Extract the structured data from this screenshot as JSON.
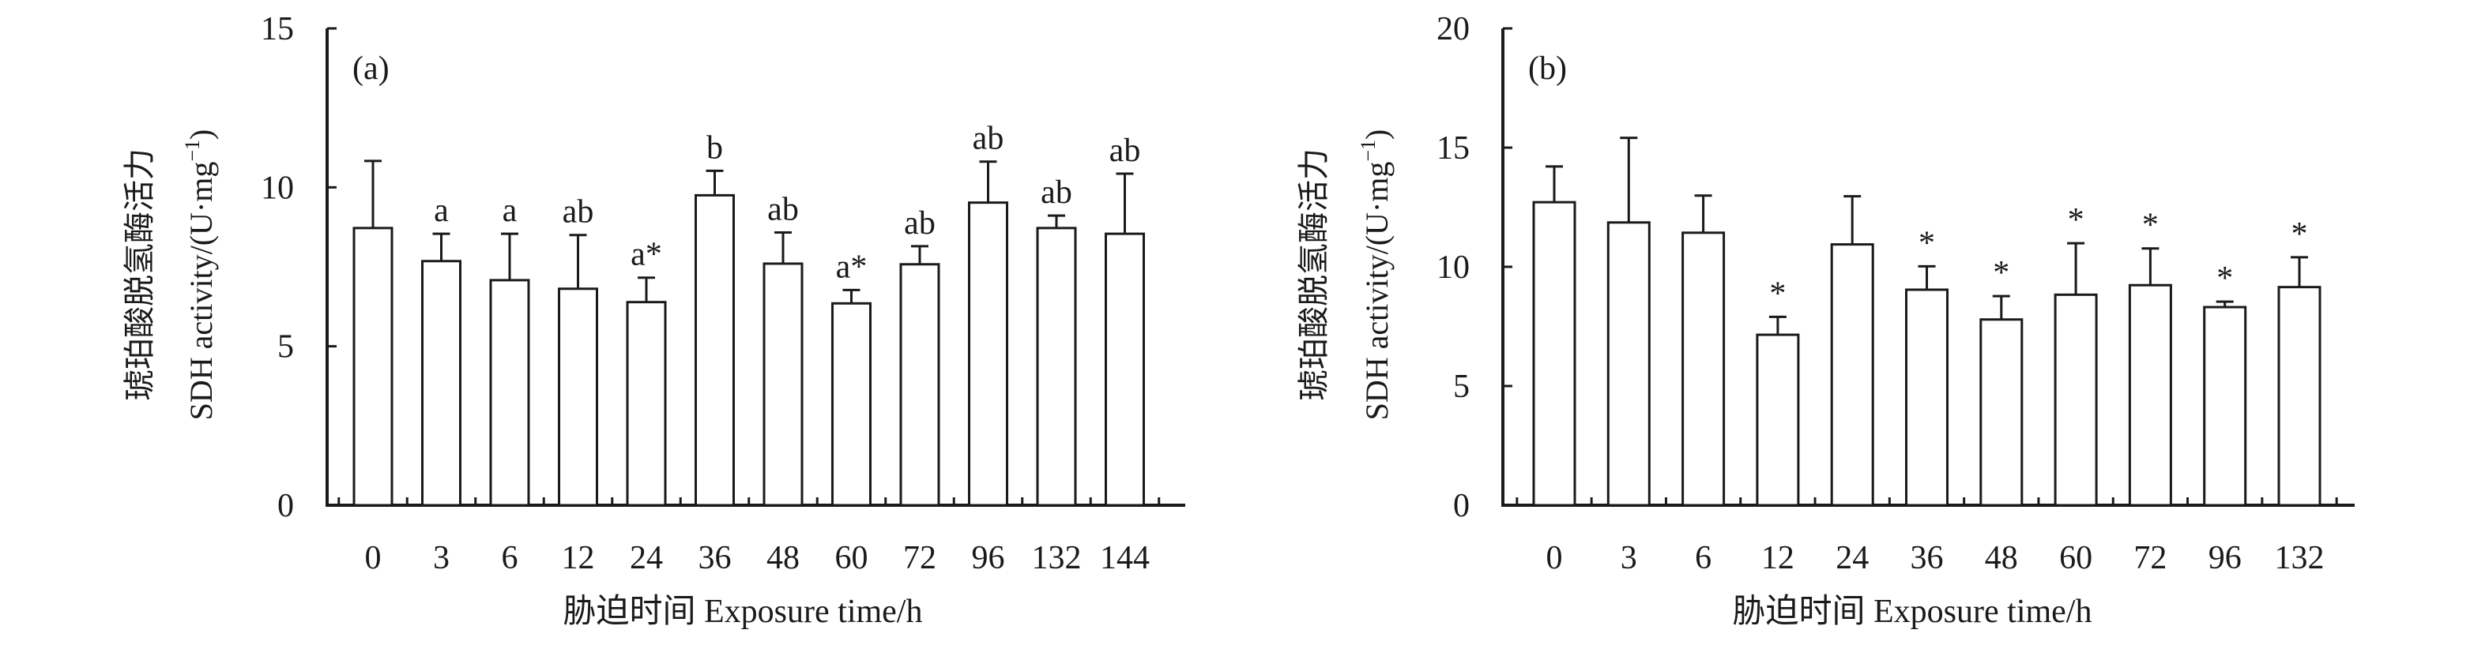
{
  "chart_data": [
    {
      "type": "bar",
      "panel_label": "(a)",
      "categories": [
        "0",
        "3",
        "6",
        "12",
        "24",
        "36",
        "48",
        "60",
        "72",
        "96",
        "132",
        "144"
      ],
      "values": [
        8.72,
        7.68,
        7.08,
        6.81,
        6.39,
        9.75,
        7.6,
        6.35,
        7.58,
        9.52,
        8.72,
        8.54
      ],
      "error_upper": [
        10.83,
        8.54,
        8.54,
        8.5,
        7.16,
        10.52,
        8.58,
        6.77,
        8.15,
        10.81,
        9.11,
        10.43
      ],
      "annotations": [
        "",
        "a",
        "a",
        "ab",
        "a*",
        "b",
        "ab",
        "a*",
        "ab",
        "ab",
        "ab",
        "ab"
      ],
      "ylabel_cn": "琥珀酸脱氢酶活力",
      "ylabel_en": "SDH activity/(U·mg",
      "ylabel_sup": "−1",
      "ylabel_close": ")",
      "xlabel": "胁迫时间 Exposure time/h",
      "ylim": [
        0,
        15
      ],
      "yticks": [
        "0",
        "5",
        "10",
        "15"
      ],
      "ytick_values": [
        0,
        5,
        10,
        15
      ]
    },
    {
      "type": "bar",
      "panel_label": "(b)",
      "categories": [
        "0",
        "3",
        "6",
        "12",
        "24",
        "36",
        "48",
        "60",
        "72",
        "96",
        "132"
      ],
      "values": [
        12.71,
        11.86,
        11.43,
        7.15,
        10.94,
        9.04,
        7.79,
        8.83,
        9.23,
        8.31,
        9.15
      ],
      "error_upper": [
        14.21,
        15.41,
        12.99,
        7.9,
        12.96,
        10.02,
        8.77,
        10.99,
        10.77,
        8.54,
        10.4
      ],
      "annotations": [
        "",
        "",
        "",
        "*",
        "",
        "*",
        "*",
        "*",
        "*",
        "*",
        "*"
      ],
      "ylabel_cn": "琥珀酸脱氢酶活力",
      "ylabel_en": "SDH activity/(U·mg",
      "ylabel_sup": "−1",
      "ylabel_close": ")",
      "xlabel": "胁迫时间 Exposure time/h",
      "ylim": [
        0,
        20
      ],
      "yticks": [
        "0",
        "5",
        "10",
        "15",
        "20"
      ],
      "ytick_values": [
        0,
        5,
        10,
        15,
        20
      ]
    }
  ]
}
